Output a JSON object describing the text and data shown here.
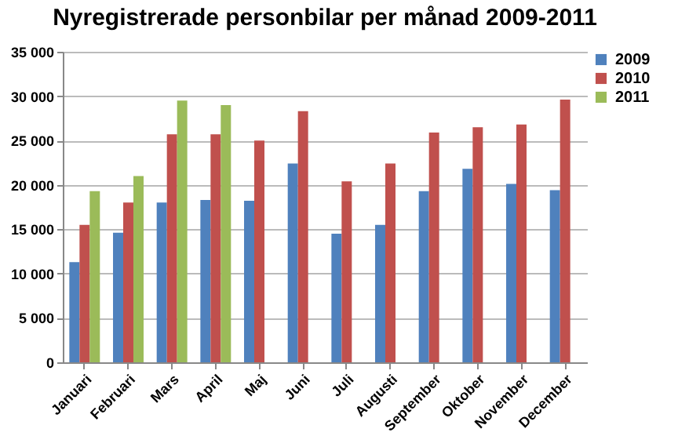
{
  "chart_data": {
    "type": "bar",
    "title": "Nyregistrerade personbilar per månad 2009-2011",
    "categories": [
      "Januari",
      "Februari",
      "Mars",
      "April",
      "Maj",
      "Juni",
      "Juli",
      "Augusti",
      "September",
      "Oktober",
      "November",
      "December"
    ],
    "series": [
      {
        "name": "2009",
        "color": "#4f81bd",
        "values": [
          11300,
          14600,
          18000,
          18300,
          18200,
          22400,
          14500,
          15500,
          19300,
          21800,
          20100,
          19400
        ]
      },
      {
        "name": "2010",
        "color": "#c0504d",
        "values": [
          15500,
          18000,
          25700,
          25700,
          25000,
          28300,
          20400,
          22400,
          25900,
          26500,
          26800,
          29600
        ]
      },
      {
        "name": "2011",
        "color": "#9bbb59",
        "values": [
          19300,
          21000,
          29500,
          29000,
          null,
          null,
          null,
          null,
          null,
          null,
          null,
          null
        ]
      }
    ],
    "ylim": [
      0,
      35000
    ],
    "yticks": [
      0,
      {
        "value": 5000,
        "label": "5 000"
      },
      {
        "value": 10000,
        "label": "10 000"
      },
      {
        "value": 15000,
        "label": "15 000"
      },
      {
        "value": 20000,
        "label": "20 000"
      },
      {
        "value": 25000,
        "label": "25 000"
      },
      {
        "value": 30000,
        "label": "30 000"
      },
      {
        "value": 35000,
        "label": "35 000"
      }
    ],
    "grid": "y",
    "legend": "right"
  }
}
